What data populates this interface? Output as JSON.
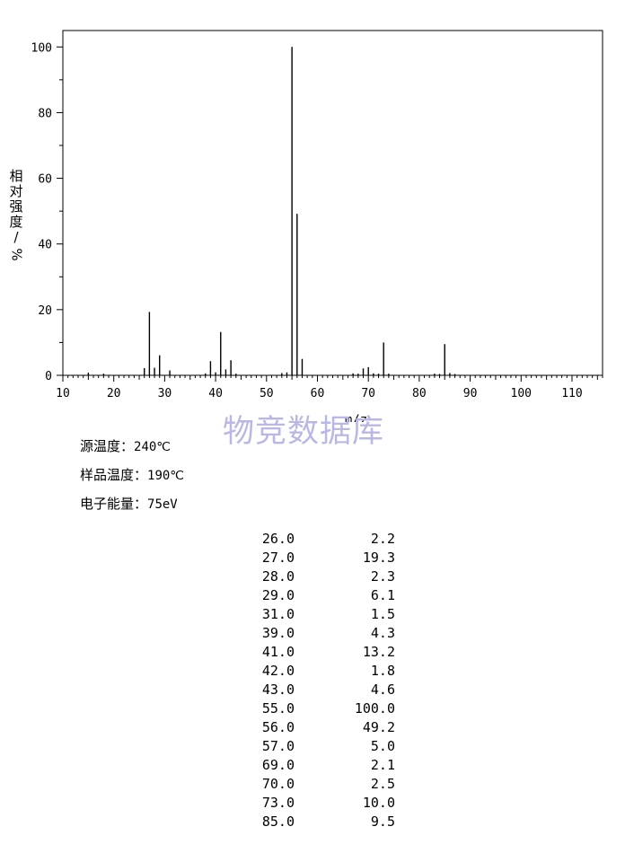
{
  "chart_data": {
    "type": "bar",
    "xlabel": "m/z",
    "ylabel_chars": [
      "相",
      "对",
      "强",
      "度"
    ],
    "ylabel_unit": "%",
    "xlim": [
      10,
      116
    ],
    "ylim": [
      0,
      105
    ],
    "x_ticks": [
      10,
      20,
      30,
      40,
      50,
      60,
      70,
      80,
      90,
      100,
      110
    ],
    "y_ticks": [
      0,
      20,
      40,
      60,
      80,
      100
    ],
    "grid": false,
    "peaks": [
      {
        "mz": 15.0,
        "intensity": 0.8
      },
      {
        "mz": 18.0,
        "intensity": 0.5
      },
      {
        "mz": 26.0,
        "intensity": 2.2
      },
      {
        "mz": 27.0,
        "intensity": 19.3
      },
      {
        "mz": 28.0,
        "intensity": 2.3
      },
      {
        "mz": 29.0,
        "intensity": 6.1
      },
      {
        "mz": 31.0,
        "intensity": 1.5
      },
      {
        "mz": 38.0,
        "intensity": 0.6
      },
      {
        "mz": 39.0,
        "intensity": 4.3
      },
      {
        "mz": 40.0,
        "intensity": 0.9
      },
      {
        "mz": 41.0,
        "intensity": 13.2
      },
      {
        "mz": 42.0,
        "intensity": 1.8
      },
      {
        "mz": 43.0,
        "intensity": 4.6
      },
      {
        "mz": 44.0,
        "intensity": 0.5
      },
      {
        "mz": 53.0,
        "intensity": 0.7
      },
      {
        "mz": 54.0,
        "intensity": 0.9
      },
      {
        "mz": 55.0,
        "intensity": 100.0
      },
      {
        "mz": 56.0,
        "intensity": 49.2
      },
      {
        "mz": 57.0,
        "intensity": 5.0
      },
      {
        "mz": 67.0,
        "intensity": 0.6
      },
      {
        "mz": 68.0,
        "intensity": 0.5
      },
      {
        "mz": 69.0,
        "intensity": 2.1
      },
      {
        "mz": 70.0,
        "intensity": 2.5
      },
      {
        "mz": 71.0,
        "intensity": 0.6
      },
      {
        "mz": 72.0,
        "intensity": 0.5
      },
      {
        "mz": 73.0,
        "intensity": 10.0
      },
      {
        "mz": 74.0,
        "intensity": 0.5
      },
      {
        "mz": 83.0,
        "intensity": 0.5
      },
      {
        "mz": 84.0,
        "intensity": 0.4
      },
      {
        "mz": 85.0,
        "intensity": 9.5
      },
      {
        "mz": 86.0,
        "intensity": 0.7
      },
      {
        "mz": 87.0,
        "intensity": 0.4
      }
    ]
  },
  "watermark": "物竞数据库",
  "conditions": [
    {
      "label": "源温度：",
      "value": "240℃"
    },
    {
      "label": "样品温度：",
      "value": "190℃"
    },
    {
      "label": "电子能量：",
      "value": "75eV"
    }
  ],
  "peak_table": [
    {
      "mz": "26.0",
      "intensity": "2.2"
    },
    {
      "mz": "27.0",
      "intensity": "19.3"
    },
    {
      "mz": "28.0",
      "intensity": "2.3"
    },
    {
      "mz": "29.0",
      "intensity": "6.1"
    },
    {
      "mz": "31.0",
      "intensity": "1.5"
    },
    {
      "mz": "39.0",
      "intensity": "4.3"
    },
    {
      "mz": "41.0",
      "intensity": "13.2"
    },
    {
      "mz": "42.0",
      "intensity": "1.8"
    },
    {
      "mz": "43.0",
      "intensity": "4.6"
    },
    {
      "mz": "55.0",
      "intensity": "100.0"
    },
    {
      "mz": "56.0",
      "intensity": "49.2"
    },
    {
      "mz": "57.0",
      "intensity": "5.0"
    },
    {
      "mz": "69.0",
      "intensity": "2.1"
    },
    {
      "mz": "70.0",
      "intensity": "2.5"
    },
    {
      "mz": "73.0",
      "intensity": "10.0"
    },
    {
      "mz": "85.0",
      "intensity": "9.5"
    }
  ]
}
